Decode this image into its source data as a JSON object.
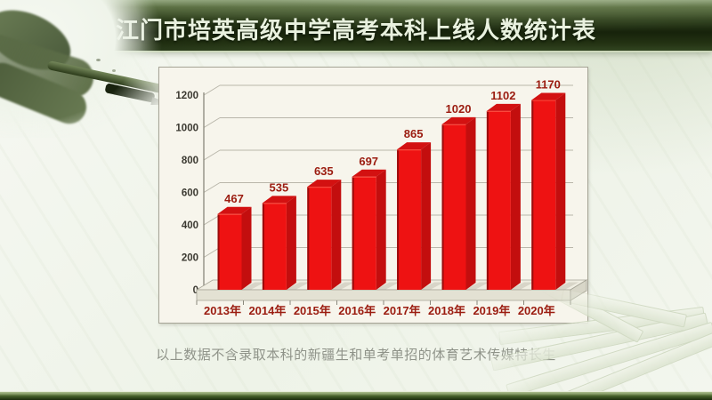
{
  "slide": {
    "title": "江门市培英高级中学高考本科上线人数统计表",
    "caption": "以上数据不含录取本科的新疆生和单考单招的体育艺术传媒特长生"
  },
  "colors": {
    "title_text": "#e9f1df",
    "banner_edge": "#cbd7ba",
    "panel_bg": "#f7f5ec",
    "panel_border": "#a6a496",
    "gridline": "#b9b6aa",
    "axis_line": "#8a887c",
    "axis_text": "#3b3931",
    "label_red": "#9b1c10",
    "caption_gray": "#8f9389",
    "floor_top": "#f0eee2",
    "floor_front": "#e3e1d3",
    "floor_side": "#d8d6c8",
    "shadow": "#b0ad9f"
  },
  "chart_data": {
    "type": "bar",
    "style": "3d-column",
    "categories": [
      "2013年",
      "2014年",
      "2015年",
      "2016年",
      "2017年",
      "2018年",
      "2019年",
      "2020年"
    ],
    "values": [
      467,
      535,
      635,
      697,
      865,
      1020,
      1102,
      1170
    ],
    "title": "",
    "xlabel": "",
    "ylabel": "",
    "ylim": [
      0,
      1200
    ],
    "ytick_step": 200,
    "ytick_labels": [
      "0",
      "200",
      "400",
      "600",
      "800",
      "1000",
      "1200"
    ],
    "grid": true,
    "legend": false,
    "bar_color": "#ee1212",
    "bar_color_top": "#d31111",
    "bar_color_side": "#c30e0e",
    "bar_color_edge": "#9a0b0b",
    "bar_highlight": "#ff5c4c",
    "data_label_color": "#9b1c10"
  }
}
